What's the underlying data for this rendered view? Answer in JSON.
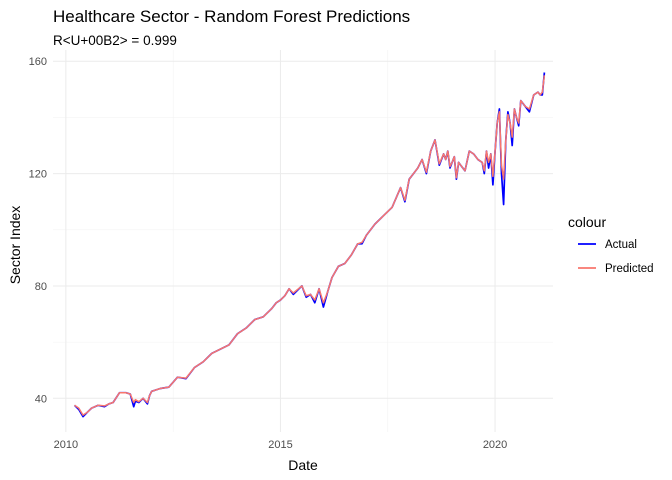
{
  "chart_data": {
    "type": "line",
    "title": "Healthcare Sector - Random Forest Predictions",
    "subtitle": "R<U+00B2> = 0.999",
    "xlabel": "Date",
    "ylabel": "Sector Index",
    "x_ticks": [
      "2010",
      "2015",
      "2020"
    ],
    "y_ticks": [
      "40",
      "80",
      "120",
      "160"
    ],
    "xlim": [
      2009.7,
      2021.35
    ],
    "ylim": [
      28,
      164
    ],
    "grid": true,
    "legend": {
      "title": "colour",
      "placement": "right"
    },
    "series": [
      {
        "name": "Actual",
        "color": "#0000ff",
        "x": [
          2010.2,
          2010.3,
          2010.4,
          2010.5,
          2010.6,
          2010.75,
          2010.9,
          2011.0,
          2011.1,
          2011.25,
          2011.4,
          2011.5,
          2011.58,
          2011.62,
          2011.7,
          2011.8,
          2011.9,
          2011.95,
          2012.0,
          2012.2,
          2012.4,
          2012.6,
          2012.8,
          2013.0,
          2013.2,
          2013.4,
          2013.6,
          2013.8,
          2014.0,
          2014.2,
          2014.4,
          2014.6,
          2014.8,
          2014.9,
          2015.0,
          2015.1,
          2015.2,
          2015.3,
          2015.5,
          2015.6,
          2015.7,
          2015.8,
          2015.9,
          2016.0,
          2016.1,
          2016.2,
          2016.35,
          2016.5,
          2016.65,
          2016.8,
          2016.9,
          2017.0,
          2017.2,
          2017.4,
          2017.6,
          2017.8,
          2017.9,
          2018.0,
          2018.1,
          2018.2,
          2018.3,
          2018.4,
          2018.5,
          2018.6,
          2018.7,
          2018.8,
          2018.85,
          2018.9,
          2018.95,
          2019.0,
          2019.05,
          2019.1,
          2019.15,
          2019.2,
          2019.3,
          2019.4,
          2019.5,
          2019.6,
          2019.7,
          2019.75,
          2019.8,
          2019.85,
          2019.9,
          2019.95,
          2020.0,
          2020.05,
          2020.1,
          2020.15,
          2020.2,
          2020.25,
          2020.3,
          2020.35,
          2020.4,
          2020.45,
          2020.5,
          2020.55,
          2020.6,
          2020.7,
          2020.8,
          2020.9,
          2021.0,
          2021.05,
          2021.1,
          2021.15
        ],
        "y": [
          37.5,
          36,
          33.5,
          35,
          36.5,
          37.5,
          37,
          38,
          38.5,
          42,
          42,
          41.5,
          37,
          39,
          38.5,
          40,
          38,
          41,
          42.5,
          43.5,
          44,
          47.5,
          47,
          51,
          53,
          56,
          57.5,
          59,
          63,
          65,
          68,
          69,
          72,
          74,
          75,
          76.5,
          79,
          77,
          80,
          76,
          77,
          74,
          79,
          72.5,
          78,
          83,
          87,
          88,
          91,
          95,
          95,
          98,
          102,
          105,
          108,
          115,
          110,
          118,
          120,
          122,
          125,
          120,
          128,
          132,
          123,
          127,
          125,
          128,
          122,
          124,
          126,
          118,
          124,
          123,
          121,
          128,
          127,
          125,
          124,
          120,
          128,
          122,
          127,
          116,
          128,
          138,
          143,
          120,
          109,
          132,
          142,
          138,
          130,
          143,
          140,
          137,
          146,
          144,
          142,
          148,
          149,
          148,
          148,
          156
        ],
        "y_pred": [
          37.5,
          36.5,
          34,
          35,
          36.5,
          37.5,
          37.3,
          38,
          38.5,
          42,
          42,
          41.5,
          38.5,
          39.5,
          38.8,
          40,
          38.5,
          41,
          42.5,
          43.5,
          44,
          47.5,
          47.2,
          51,
          53,
          56,
          57.5,
          59,
          63,
          65,
          68,
          69,
          72,
          74,
          75,
          76.5,
          79,
          77.5,
          80,
          76.5,
          77,
          75,
          79,
          74,
          78,
          83,
          87,
          88,
          91,
          95,
          95.5,
          98,
          102,
          105,
          108,
          115,
          110.5,
          118,
          120,
          122,
          125,
          120.5,
          128,
          132,
          123.5,
          127,
          125,
          128,
          122.5,
          124,
          126,
          118.5,
          124,
          123,
          121,
          128,
          127,
          125,
          124,
          121,
          128,
          124,
          127,
          119,
          128,
          138,
          142,
          123,
          118,
          132,
          141,
          138,
          133,
          143,
          140,
          138,
          146,
          144,
          143,
          148,
          149,
          148,
          149,
          155
        ]
      },
      {
        "name": "Predicted",
        "color": "#f8766d"
      }
    ]
  }
}
